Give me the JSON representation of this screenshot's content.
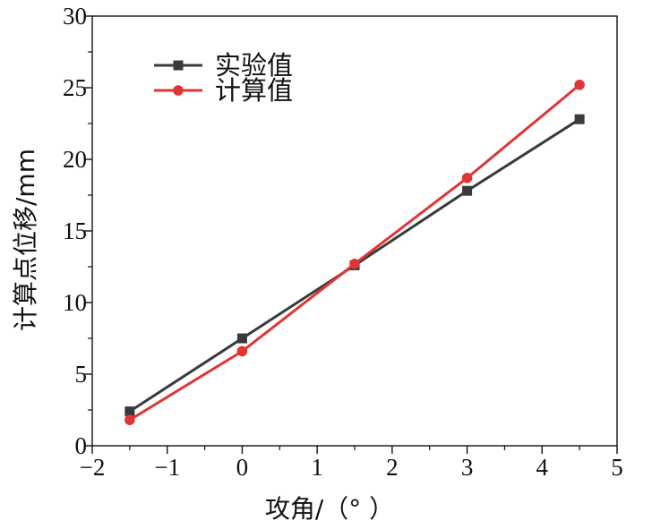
{
  "chart_data": {
    "type": "line",
    "xlabel": "攻角/（°  ）",
    "ylabel": "计算点位移/mm",
    "xlim": [
      -2,
      5
    ],
    "ylim": [
      0,
      30
    ],
    "x_ticks": [
      -2,
      -1,
      0,
      1,
      2,
      3,
      4,
      5
    ],
    "x_tick_labels": [
      "−2",
      "−1",
      "0",
      "1",
      "2",
      "3",
      "4",
      "5"
    ],
    "y_ticks": [
      0,
      5,
      10,
      15,
      20,
      25,
      30
    ],
    "y_tick_labels": [
      "0",
      "5",
      "10",
      "15",
      "20",
      "25",
      "30"
    ],
    "grid": false,
    "legend_position": "top-left",
    "series": [
      {
        "name": "实验值",
        "color": "#3a3a3a",
        "marker": "square",
        "x": [
          -1.5,
          0,
          1.5,
          3,
          4.5
        ],
        "y": [
          2.4,
          7.5,
          12.6,
          17.8,
          22.8
        ]
      },
      {
        "name": "计算值",
        "color": "#e03535",
        "marker": "circle",
        "x": [
          -1.5,
          0,
          1.5,
          3,
          4.5
        ],
        "y": [
          1.8,
          6.6,
          12.7,
          18.7,
          25.2
        ]
      }
    ]
  }
}
